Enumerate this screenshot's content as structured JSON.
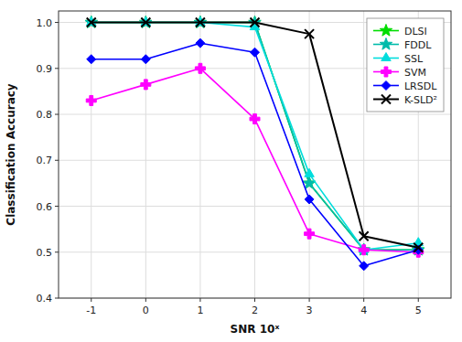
{
  "chart_data": {
    "type": "line",
    "xlabel": "SNR 10ˣ",
    "ylabel": "Classification Accuracy",
    "x": [
      -1,
      0,
      1,
      2,
      3,
      4,
      5
    ],
    "series": [
      {
        "name": "DLSI",
        "color": "#00dd00",
        "marker": "star",
        "values": [
          1.0,
          1.0,
          1.0,
          1.0,
          0.65,
          0.505,
          0.505
        ]
      },
      {
        "name": "FDDL",
        "color": "#00bbaa",
        "marker": "star",
        "values": [
          1.0,
          1.0,
          1.0,
          1.0,
          0.65,
          0.505,
          0.505
        ]
      },
      {
        "name": "SSL",
        "color": "#00dddd",
        "marker": "triangle",
        "values": [
          1.0,
          1.0,
          1.0,
          0.99,
          0.67,
          0.505,
          0.52
        ]
      },
      {
        "name": "SVM",
        "color": "#ff00ff",
        "marker": "plus-filled",
        "values": [
          0.83,
          0.865,
          0.9,
          0.79,
          0.54,
          0.505,
          0.5
        ]
      },
      {
        "name": "LRSDL",
        "color": "#0000ff",
        "marker": "diamond",
        "values": [
          0.92,
          0.92,
          0.955,
          0.935,
          0.615,
          0.47,
          0.505
        ]
      },
      {
        "name": "K-SLD²",
        "color": "#000000",
        "marker": "x",
        "values": [
          1.0,
          1.0,
          1.0,
          1.0,
          0.975,
          0.535,
          0.51
        ]
      }
    ],
    "xlim": [
      -1.6,
      5.6
    ],
    "ylim": [
      0.4,
      1.025
    ],
    "xticks": [
      -1,
      0,
      1,
      2,
      3,
      4,
      5
    ],
    "yticks": [
      0.4,
      0.5,
      0.6,
      0.7,
      0.8,
      0.9,
      {
        "value": 1.0,
        "label": "1.0"
      }
    ],
    "grid": true,
    "legend": "upper right"
  }
}
